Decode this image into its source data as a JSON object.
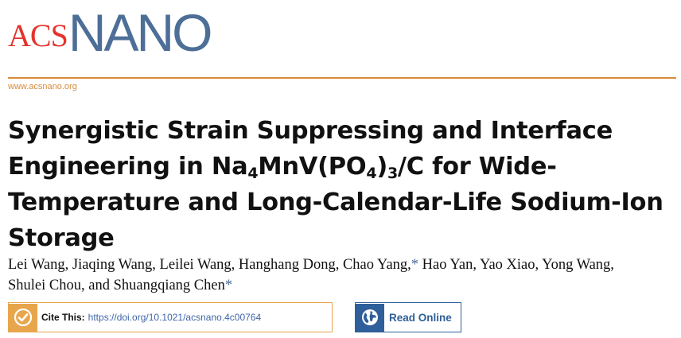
{
  "journal": {
    "logo_acs": "ACS",
    "logo_nano": "NANO",
    "url": "www.acsnano.org"
  },
  "article": {
    "title_part1": "Synergistic Strain Suppressing and Interface Engineering in Na",
    "title_sub1": "4",
    "title_part2": "MnV(PO",
    "title_sub2": "4",
    "title_part3": ")",
    "title_sub3": "3",
    "title_part4": "/C for Wide-Temperature and Long-Calendar-Life Sodium-Ion Storage",
    "authors_line1": "Lei Wang, Jiaqing Wang, Leilei Wang, Hanghang Dong, Chao Yang,",
    "corresponding_mark": "*",
    "authors_line1b": " Hao Yan, Yao Xiao, Yong Wang,",
    "authors_line2": "Shulei Chou, and Shuangqiang Chen"
  },
  "actions": {
    "cite_label": "Cite This:",
    "cite_doi": "https://doi.org/10.1021/acsnano.4c00764",
    "read_online_label": "Read Online"
  },
  "colors": {
    "acs_red": "#e4332d",
    "nano_blue": "#4d6e97",
    "orange_rule": "#d98b3a",
    "cite_orange": "#e8a64c",
    "read_blue": "#2f5f9a"
  },
  "icons": {
    "cite": "check-circle-icon",
    "read_online": "globe-icon"
  }
}
